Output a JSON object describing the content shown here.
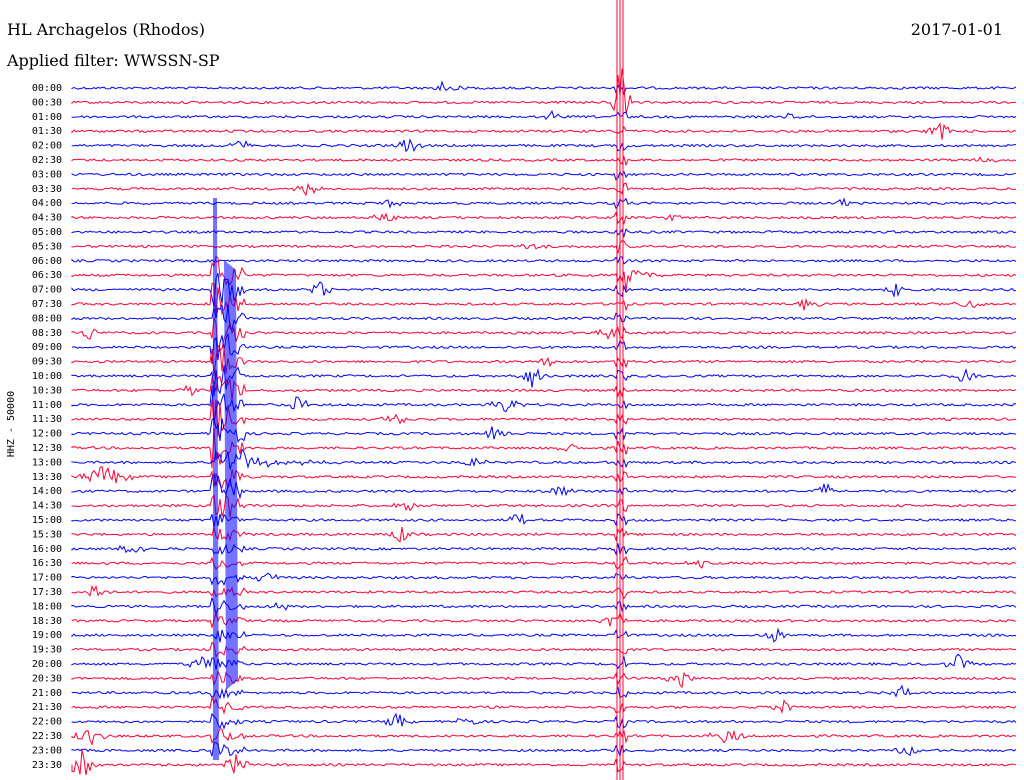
{
  "header": {
    "station": "HL Archagelos (Rhodos)",
    "date": "2017-01-01",
    "filter": "Applied filter: WWSSN-SP"
  },
  "chart_data": {
    "type": "line",
    "subtype": "helicorder",
    "xlabel": "",
    "ylabel": "HHZ - 50000",
    "colors": {
      "even_traces": "#0000ff",
      "odd_traces": "#ff0033"
    },
    "rows": [
      "00:00",
      "00:30",
      "01:00",
      "01:30",
      "02:00",
      "02:30",
      "03:00",
      "03:30",
      "04:00",
      "04:30",
      "05:00",
      "05:30",
      "06:00",
      "06:30",
      "07:00",
      "07:30",
      "08:00",
      "08:30",
      "09:00",
      "09:30",
      "10:00",
      "10:30",
      "11:00",
      "11:30",
      "12:00",
      "12:30",
      "13:00",
      "13:30",
      "14:00",
      "14:30",
      "15:00",
      "15:30",
      "16:00",
      "16:30",
      "17:00",
      "17:30",
      "18:00",
      "18:30",
      "19:00",
      "19:30",
      "20:00",
      "20:30",
      "21:00",
      "21:30",
      "22:00",
      "22:30",
      "23:00",
      "23:30"
    ],
    "grid": false,
    "legend": "none"
  }
}
